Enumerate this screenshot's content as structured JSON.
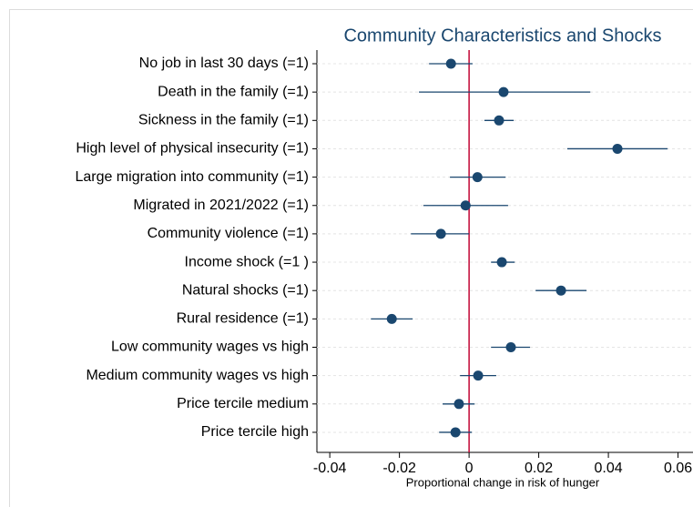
{
  "chart_data": {
    "type": "coefplot",
    "title": "Community Characteristics and Shocks",
    "x_label": "Proportional change in risk of hunger",
    "categories": [
      "No job in last 30 days (=1)",
      "Death in the family (=1)",
      "Sickness in the family (=1)",
      "High level of physical insecurity (=1)",
      "Large migration into community (=1)",
      "Migrated in 2021/2022 (=1)",
      "Community violence (=1)",
      "Income shock (=1 )",
      "Natural shocks (=1)",
      "Rural residence (=1)",
      "Low community wages vs high",
      "Medium community wages vs high",
      "Price tercile medium",
      "Price tercile high"
    ],
    "values": [
      -0.0052,
      0.0099,
      0.0086,
      0.0426,
      0.0024,
      -0.001,
      -0.0081,
      0.0094,
      0.0264,
      -0.0222,
      0.012,
      0.0026,
      -0.0029,
      -0.0039
    ],
    "lower": [
      -0.0115,
      -0.0144,
      0.0044,
      0.0282,
      -0.0055,
      -0.0131,
      -0.0167,
      0.0063,
      0.0191,
      -0.0282,
      0.0063,
      -0.0026,
      -0.0076,
      -0.0086
    ],
    "upper": [
      0.001,
      0.0348,
      0.0128,
      0.057,
      0.0105,
      0.0112,
      0,
      0.0131,
      0.0337,
      -0.0162,
      0.0175,
      0.0078,
      0.0016,
      0.0008
    ],
    "color": "#1a476f",
    "reference_line": 0,
    "reference_color": "#c10534",
    "xlim": [
      -0.0437,
      0.0643
    ],
    "xticks": [
      -0.04,
      -0.02,
      0,
      0.02,
      0.04,
      0.06
    ],
    "grid": true
  }
}
